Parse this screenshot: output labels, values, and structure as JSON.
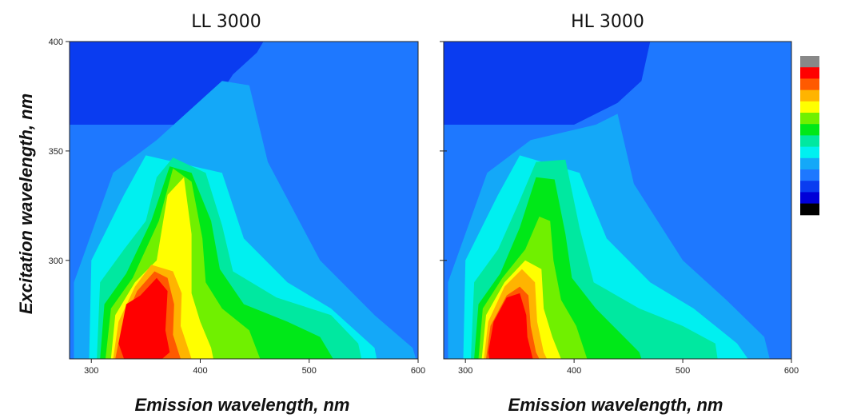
{
  "ylabel": "Excitation wavelength, nm",
  "colormap": [
    "#000000",
    "#0000d8",
    "#0a3cf0",
    "#1e78ff",
    "#14a8f8",
    "#00f0f0",
    "#00e8a0",
    "#00e818",
    "#70f000",
    "#ffff00",
    "#ffb400",
    "#ff5a00",
    "#ff0000",
    "#888888"
  ],
  "chart_data": [
    {
      "type": "heatmap",
      "title": "LL 3000",
      "xlabel": "Emission wavelength, nm",
      "ylabel": "Excitation wavelength, nm",
      "xlim": [
        280,
        600
      ],
      "ylim": [
        255,
        400
      ],
      "xticks": [
        300,
        400,
        500,
        600
      ],
      "yticks": [
        300,
        350,
        400
      ],
      "peak": {
        "x": 365,
        "y": 275,
        "level": 12
      },
      "secondary_peak": {
        "x": 378,
        "y": 325,
        "level": 9
      },
      "levels": [
        {
          "level": 3,
          "polygon": [
            [
              280,
              362
            ],
            [
              400,
              362
            ],
            [
              430,
              385
            ],
            [
              452,
              395
            ],
            [
              458,
              400
            ],
            [
              600,
              400
            ],
            [
              600,
              255
            ],
            [
              280,
              255
            ]
          ]
        },
        {
          "level": 4,
          "polygon": [
            [
              284,
              255
            ],
            [
              284,
              290
            ],
            [
              320,
              340
            ],
            [
              360,
              355
            ],
            [
              420,
              382
            ],
            [
              445,
              380
            ],
            [
              462,
              345
            ],
            [
              510,
              300
            ],
            [
              560,
              275
            ],
            [
              595,
              260
            ],
            [
              598,
              255
            ]
          ]
        },
        {
          "level": 5,
          "polygon": [
            [
              298,
              255
            ],
            [
              300,
              300
            ],
            [
              330,
              330
            ],
            [
              350,
              348
            ],
            [
              420,
              340
            ],
            [
              440,
              310
            ],
            [
              480,
              290
            ],
            [
              520,
              278
            ],
            [
              560,
              260
            ],
            [
              562,
              255
            ]
          ]
        },
        {
          "level": 6,
          "polygon": [
            [
              305,
              255
            ],
            [
              308,
              290
            ],
            [
              330,
              305
            ],
            [
              350,
              318
            ],
            [
              360,
              338
            ],
            [
              375,
              347
            ],
            [
              405,
              340
            ],
            [
              420,
              316
            ],
            [
              430,
              295
            ],
            [
              470,
              283
            ],
            [
              520,
              275
            ],
            [
              545,
              262
            ],
            [
              548,
              255
            ]
          ]
        },
        {
          "level": 7,
          "polygon": [
            [
              308,
              255
            ],
            [
              312,
              280
            ],
            [
              332,
              294
            ],
            [
              355,
              318
            ],
            [
              372,
              343
            ],
            [
              392,
              340
            ],
            [
              410,
              318
            ],
            [
              418,
              296
            ],
            [
              440,
              280
            ],
            [
              480,
              272
            ],
            [
              510,
              265
            ],
            [
              522,
              255
            ]
          ]
        },
        {
          "level": 8,
          "polygon": [
            [
              313,
              255
            ],
            [
              318,
              278
            ],
            [
              338,
              292
            ],
            [
              362,
              318
            ],
            [
              375,
              342
            ],
            [
              392,
              336
            ],
            [
              402,
              310
            ],
            [
              405,
              290
            ],
            [
              420,
              278
            ],
            [
              445,
              268
            ],
            [
              455,
              255
            ]
          ]
        },
        {
          "level": 9,
          "polygon": [
            [
              318,
              255
            ],
            [
              322,
              275
            ],
            [
              340,
              290
            ],
            [
              360,
              300
            ],
            [
              370,
              330
            ],
            [
              385,
              338
            ],
            [
              392,
              312
            ],
            [
              392,
              285
            ],
            [
              400,
              272
            ],
            [
              410,
              260
            ],
            [
              412,
              255
            ]
          ]
        },
        {
          "level": 10,
          "polygon": [
            [
              320,
              255
            ],
            [
              325,
              272
            ],
            [
              340,
              288
            ],
            [
              355,
              298
            ],
            [
              375,
              295
            ],
            [
              383,
              285
            ],
            [
              382,
              270
            ],
            [
              390,
              258
            ],
            [
              392,
              255
            ]
          ]
        },
        {
          "level": 11,
          "polygon": [
            [
              322,
              255
            ],
            [
              328,
              270
            ],
            [
              342,
              286
            ],
            [
              358,
              295
            ],
            [
              370,
              292
            ],
            [
              376,
              280
            ],
            [
              375,
              266
            ],
            [
              380,
              258
            ],
            [
              382,
              255
            ]
          ]
        },
        {
          "level": 12,
          "polygon": [
            [
              325,
              262
            ],
            [
              332,
              280
            ],
            [
              345,
              284
            ],
            [
              360,
              292
            ],
            [
              370,
              286
            ],
            [
              368,
              268
            ],
            [
              372,
              258
            ],
            [
              365,
              255
            ],
            [
              330,
              255
            ]
          ]
        }
      ]
    },
    {
      "type": "heatmap",
      "title": "HL 3000",
      "xlabel": "Emission wavelength, nm",
      "ylabel": "Excitation wavelength, nm",
      "xlim": [
        280,
        600
      ],
      "ylim": [
        255,
        400
      ],
      "xticks": [
        300,
        400,
        500,
        600
      ],
      "yticks": [
        300,
        350,
        400
      ],
      "peak": {
        "x": 345,
        "y": 275,
        "level": 12
      },
      "levels": [
        {
          "level": 3,
          "polygon": [
            [
              280,
              362
            ],
            [
              400,
              362
            ],
            [
              440,
              372
            ],
            [
              462,
              382
            ],
            [
              470,
              400
            ],
            [
              600,
              400
            ],
            [
              600,
              255
            ],
            [
              280,
              255
            ]
          ]
        },
        {
          "level": 4,
          "polygon": [
            [
              284,
              255
            ],
            [
              284,
              290
            ],
            [
              320,
              340
            ],
            [
              360,
              355
            ],
            [
              420,
              362
            ],
            [
              440,
              367
            ],
            [
              455,
              335
            ],
            [
              500,
              300
            ],
            [
              540,
              282
            ],
            [
              575,
              265
            ],
            [
              580,
              255
            ]
          ]
        },
        {
          "level": 5,
          "polygon": [
            [
              298,
              255
            ],
            [
              300,
              300
            ],
            [
              330,
              330
            ],
            [
              350,
              348
            ],
            [
              405,
              340
            ],
            [
              430,
              310
            ],
            [
              470,
              290
            ],
            [
              510,
              278
            ],
            [
              550,
              262
            ],
            [
              560,
              255
            ]
          ]
        },
        {
          "level": 6,
          "polygon": [
            [
              305,
              255
            ],
            [
              308,
              290
            ],
            [
              330,
              305
            ],
            [
              348,
              325
            ],
            [
              365,
              345
            ],
            [
              392,
              346
            ],
            [
              405,
              315
            ],
            [
              418,
              290
            ],
            [
              460,
              278
            ],
            [
              500,
              270
            ],
            [
              530,
              262
            ],
            [
              532,
              255
            ]
          ]
        },
        {
          "level": 7,
          "polygon": [
            [
              308,
              255
            ],
            [
              312,
              280
            ],
            [
              332,
              294
            ],
            [
              350,
              315
            ],
            [
              365,
              338
            ],
            [
              382,
              337
            ],
            [
              392,
              312
            ],
            [
              398,
              292
            ],
            [
              420,
              278
            ],
            [
              440,
              268
            ],
            [
              460,
              258
            ],
            [
              462,
              255
            ]
          ]
        },
        {
          "level": 8,
          "polygon": [
            [
              312,
              255
            ],
            [
              316,
              278
            ],
            [
              334,
              292
            ],
            [
              355,
              305
            ],
            [
              368,
              320
            ],
            [
              378,
              318
            ],
            [
              381,
              300
            ],
            [
              388,
              282
            ],
            [
              402,
              270
            ],
            [
              412,
              255
            ]
          ]
        },
        {
          "level": 9,
          "polygon": [
            [
              315,
              255
            ],
            [
              319,
              275
            ],
            [
              336,
              290
            ],
            [
              355,
              300
            ],
            [
              370,
              296
            ],
            [
              372,
              278
            ],
            [
              380,
              265
            ],
            [
              388,
              255
            ]
          ]
        },
        {
          "level": 10,
          "polygon": [
            [
              317,
              255
            ],
            [
              321,
              272
            ],
            [
              336,
              288
            ],
            [
              352,
              296
            ],
            [
              364,
              290
            ],
            [
              366,
              272
            ],
            [
              372,
              258
            ],
            [
              375,
              255
            ]
          ]
        },
        {
          "level": 11,
          "polygon": [
            [
              319,
              255
            ],
            [
              323,
              270
            ],
            [
              338,
              284
            ],
            [
              350,
              288
            ],
            [
              358,
              284
            ],
            [
              360,
              270
            ],
            [
              365,
              258
            ],
            [
              368,
              255
            ]
          ]
        },
        {
          "level": 12,
          "polygon": [
            [
              321,
              258
            ],
            [
              326,
              272
            ],
            [
              338,
              283
            ],
            [
              350,
              285
            ],
            [
              356,
              275
            ],
            [
              357,
              265
            ],
            [
              362,
              255
            ],
            [
              322,
              255
            ]
          ]
        }
      ]
    }
  ]
}
